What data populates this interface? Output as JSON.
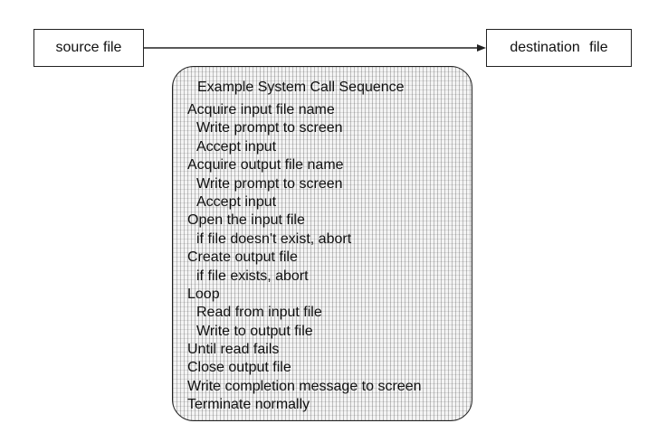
{
  "diagram": {
    "source_label": "source file",
    "destination_label": "destination  file",
    "sequence_title": "Example System Call Sequence",
    "steps": [
      {
        "text": "Acquire input file name",
        "indent": false
      },
      {
        "text": "Write prompt to screen",
        "indent": true
      },
      {
        "text": "Accept input",
        "indent": true
      },
      {
        "text": "Acquire output file name",
        "indent": false
      },
      {
        "text": "Write prompt to screen",
        "indent": true
      },
      {
        "text": "Accept input",
        "indent": true
      },
      {
        "text": "Open the input file",
        "indent": false
      },
      {
        "text": "if file doesn't exist, abort",
        "indent": true
      },
      {
        "text": "Create output file",
        "indent": false
      },
      {
        "text": "if file exists, abort",
        "indent": true
      },
      {
        "text": "Loop",
        "indent": false
      },
      {
        "text": "Read from input file",
        "indent": true
      },
      {
        "text": "Write to output file",
        "indent": true
      },
      {
        "text": "Until read fails",
        "indent": false
      },
      {
        "text": "Close output file",
        "indent": false
      },
      {
        "text": "Write completion message to screen",
        "indent": false
      },
      {
        "text": "Terminate normally",
        "indent": false
      }
    ]
  }
}
